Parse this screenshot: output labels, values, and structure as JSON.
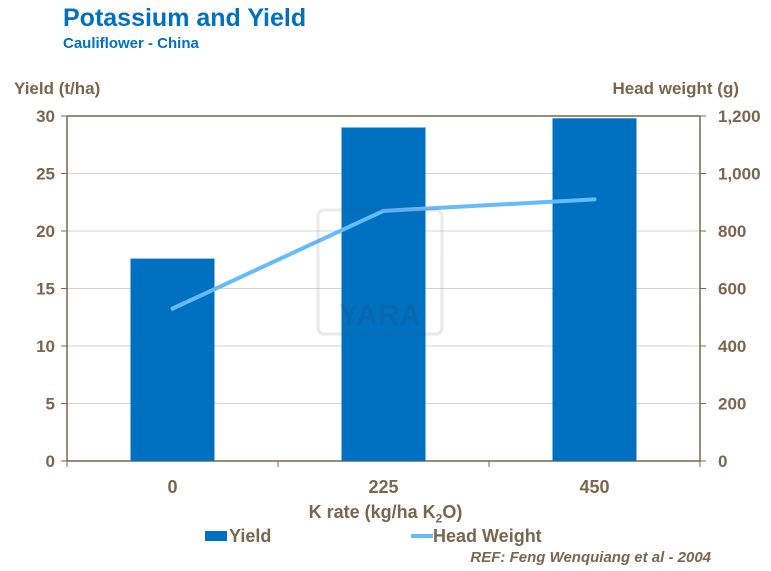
{
  "chart_data": {
    "type": "bar+line",
    "title": "Potassium and Yield",
    "subtitle": "Cauliflower - China",
    "xlabel": "K rate (kg/ha K2O)",
    "xlabel_parts": {
      "main": "K rate (kg/ha K",
      "sub": "2",
      "end": "O)"
    },
    "ylabel": "Yield (t/ha)",
    "y2label": "Head weight (g)",
    "categories": [
      "0",
      "225",
      "450"
    ],
    "ylim": [
      0,
      30
    ],
    "y2lim": [
      0,
      1200
    ],
    "yticks": [
      "0",
      "5",
      "10",
      "15",
      "20",
      "25",
      "30"
    ],
    "y2ticks": [
      "0",
      "200",
      "400",
      "600",
      "800",
      "1,000",
      "1,200"
    ],
    "series": [
      {
        "name": "Yield",
        "type": "bar",
        "axis": "left",
        "color": "#0070c0",
        "values": [
          17.6,
          29.0,
          29.8
        ]
      },
      {
        "name": "Head Weight",
        "type": "line",
        "axis": "right",
        "color": "#66bbff",
        "values": [
          530,
          870,
          910
        ]
      }
    ],
    "grid": true,
    "legend": "bottom",
    "watermark": "YARA",
    "reference": "REF: Feng Wenquiang et al - 2004"
  }
}
